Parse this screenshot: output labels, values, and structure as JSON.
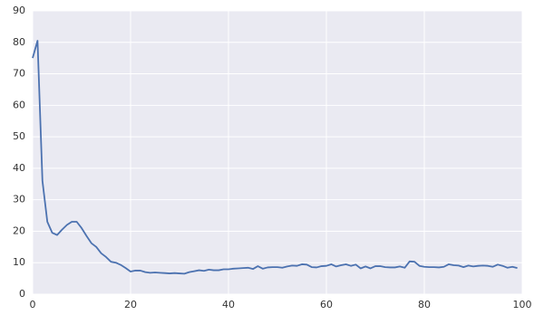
{
  "chart_data": {
    "type": "line",
    "x": [
      0,
      1,
      2,
      3,
      4,
      5,
      6,
      7,
      8,
      9,
      10,
      11,
      12,
      13,
      14,
      15,
      16,
      17,
      18,
      19,
      20,
      21,
      22,
      23,
      24,
      25,
      26,
      27,
      28,
      29,
      30,
      31,
      32,
      33,
      34,
      35,
      36,
      37,
      38,
      39,
      40,
      41,
      42,
      43,
      44,
      45,
      46,
      47,
      48,
      49,
      50,
      51,
      52,
      53,
      54,
      55,
      56,
      57,
      58,
      59,
      60,
      61,
      62,
      63,
      64,
      65,
      66,
      67,
      68,
      69,
      70,
      71,
      72,
      73,
      74,
      75,
      76,
      77,
      78,
      79,
      80,
      81,
      82,
      83,
      84,
      85,
      86,
      87,
      88,
      89,
      90,
      91,
      92,
      93,
      94,
      95,
      96,
      97,
      98,
      99
    ],
    "values": [
      75,
      80.5,
      36,
      23,
      19.5,
      18.8,
      20.5,
      22,
      23,
      23,
      21,
      18.5,
      16.2,
      15,
      13,
      11.8,
      10.3,
      10,
      9.3,
      8.3,
      7.2,
      7.5,
      7.5,
      7,
      6.8,
      6.9,
      6.8,
      6.7,
      6.6,
      6.7,
      6.6,
      6.5,
      7,
      7.3,
      7.6,
      7.4,
      7.8,
      7.6,
      7.6,
      7.9,
      7.9,
      8.1,
      8.2,
      8.3,
      8.4,
      8,
      8.9,
      8.1,
      8.5,
      8.6,
      8.6,
      8.4,
      8.8,
      9.1,
      9,
      9.5,
      9.4,
      8.6,
      8.5,
      8.9,
      9,
      9.5,
      8.8,
      9.2,
      9.5,
      9,
      9.4,
      8.2,
      8.8,
      8.2,
      8.9,
      8.9,
      8.6,
      8.5,
      8.5,
      8.8,
      8.4,
      10.4,
      10.3,
      9,
      8.7,
      8.6,
      8.6,
      8.5,
      8.7,
      9.5,
      9.2,
      9.1,
      8.6,
      9.1,
      8.8,
      9,
      9.1,
      9,
      8.7,
      9.4,
      9,
      8.4,
      8.7,
      8.3
    ],
    "color": "#4c72b0",
    "xlim": [
      0,
      100
    ],
    "xticks": [
      0,
      20,
      40,
      60,
      80,
      100
    ],
    "ylim": [
      0,
      90
    ],
    "yticks": [
      0,
      10,
      20,
      30,
      40,
      50,
      60,
      70,
      80,
      90
    ],
    "grid": true
  }
}
